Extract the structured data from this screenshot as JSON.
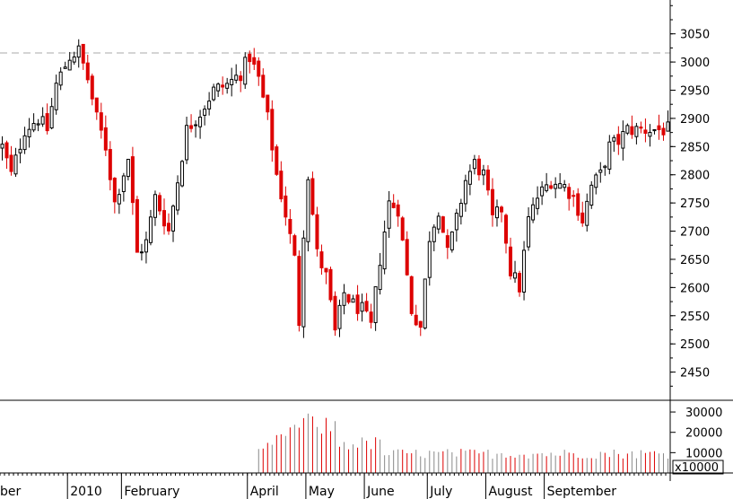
{
  "chart_data": {
    "type": "candlestick",
    "title": "",
    "price_axis": {
      "ylim": [
        2400,
        3110
      ],
      "ticks": [
        2450,
        2500,
        2550,
        2600,
        2650,
        2700,
        2750,
        2800,
        2850,
        2900,
        2950,
        3000,
        3050
      ],
      "tick_labels": [
        "2450",
        "2500",
        "2550",
        "2600",
        "2650",
        "2700",
        "2750",
        "2800",
        "2850",
        "2900",
        "2950",
        "3000",
        "3050"
      ],
      "position": "right",
      "reference_line": 3016
    },
    "volume_axis": {
      "ylim": [
        0,
        34000
      ],
      "ticks": [
        10000,
        20000,
        30000
      ],
      "tick_labels": [
        "10000",
        "20000",
        "30000"
      ],
      "unit_label": "x10000"
    },
    "x_axis": {
      "month_labels": [
        "ber",
        "2010",
        "February",
        "April",
        "May",
        "June",
        "July",
        "August",
        "September"
      ],
      "month_start_day": [
        0,
        15,
        27,
        55,
        68,
        81,
        95,
        108,
        121
      ],
      "total_days": 149
    },
    "colors": {
      "up": "#000000",
      "down": "#dd0000",
      "reference": "#aaaaaa",
      "axis": "#000000"
    },
    "anchors": [
      [
        0,
        2850
      ],
      [
        2,
        2800
      ],
      [
        5,
        2880
      ],
      [
        8,
        2900
      ],
      [
        10,
        2880
      ],
      [
        12,
        2960
      ],
      [
        15,
        3010
      ],
      [
        17,
        3020
      ],
      [
        19,
        2970
      ],
      [
        21,
        2900
      ],
      [
        23,
        2850
      ],
      [
        25,
        2750
      ],
      [
        28,
        2830
      ],
      [
        30,
        2660
      ],
      [
        32,
        2680
      ],
      [
        34,
        2760
      ],
      [
        37,
        2700
      ],
      [
        39,
        2790
      ],
      [
        41,
        2880
      ],
      [
        44,
        2910
      ],
      [
        47,
        2950
      ],
      [
        50,
        2960
      ],
      [
        53,
        2980
      ],
      [
        55,
        3010
      ],
      [
        57,
        2970
      ],
      [
        59,
        2900
      ],
      [
        61,
        2800
      ],
      [
        63,
        2730
      ],
      [
        65,
        2650
      ],
      [
        66,
        2540
      ],
      [
        67,
        2700
      ],
      [
        68,
        2800
      ],
      [
        70,
        2660
      ],
      [
        72,
        2620
      ],
      [
        74,
        2520
      ],
      [
        76,
        2590
      ],
      [
        78,
        2570
      ],
      [
        80,
        2560
      ],
      [
        82,
        2530
      ],
      [
        84,
        2650
      ],
      [
        86,
        2750
      ],
      [
        88,
        2740
      ],
      [
        89,
        2680
      ],
      [
        91,
        2560
      ],
      [
        93,
        2530
      ],
      [
        95,
        2690
      ],
      [
        97,
        2740
      ],
      [
        99,
        2660
      ],
      [
        101,
        2720
      ],
      [
        103,
        2790
      ],
      [
        105,
        2820
      ],
      [
        107,
        2800
      ],
      [
        109,
        2720
      ],
      [
        111,
        2740
      ],
      [
        113,
        2630
      ],
      [
        115,
        2600
      ],
      [
        117,
        2720
      ],
      [
        119,
        2760
      ],
      [
        122,
        2790
      ],
      [
        125,
        2780
      ],
      [
        127,
        2760
      ],
      [
        129,
        2720
      ],
      [
        131,
        2780
      ],
      [
        133,
        2800
      ],
      [
        135,
        2850
      ],
      [
        137,
        2860
      ],
      [
        139,
        2880
      ]
    ]
  }
}
